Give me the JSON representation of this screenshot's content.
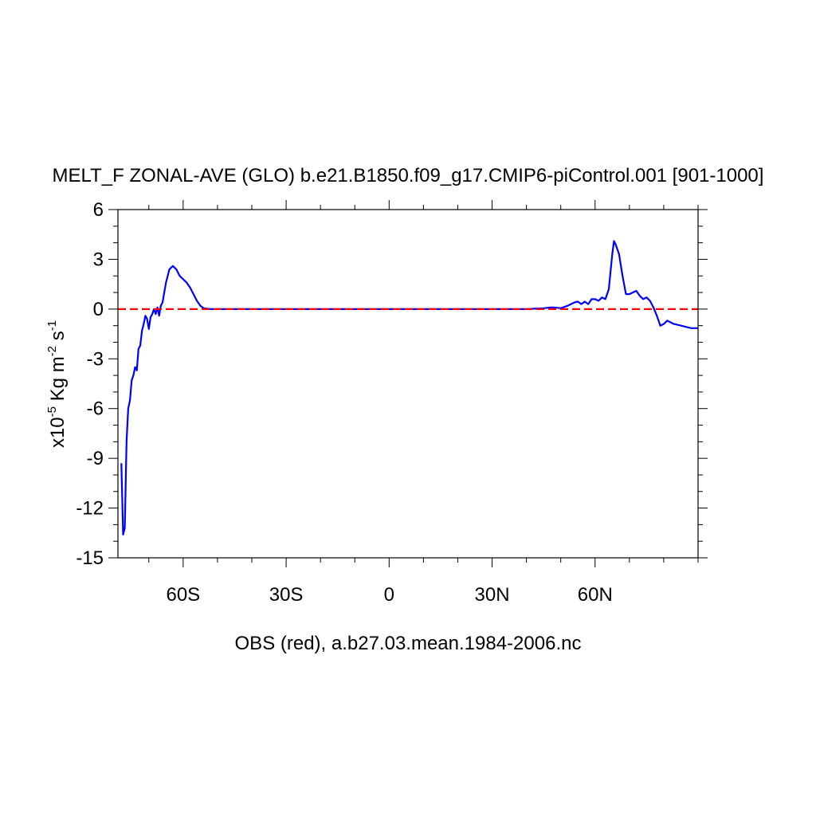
{
  "chart_data": {
    "type": "line",
    "title": "MELT_F ZONAL-AVE (GLO) b.e21.B1850.f09_g17.CMIP6-piControl.001 [901-1000]",
    "xlabel": "OBS (red), a.b27.03.mean.1984-2006.nc",
    "ylabel": {
      "prefix": "x10",
      "exp": "-5",
      "unit1": " Kg m",
      "unit1_exp": "-2",
      "unit2": " s",
      "unit2_exp": "-1"
    },
    "xlim": [
      -79,
      90
    ],
    "ylim": [
      -15,
      6
    ],
    "x_ticks": [
      -60,
      -30,
      0,
      30,
      60
    ],
    "x_tick_labels": [
      "60S",
      "30S",
      "0",
      "30N",
      "60N"
    ],
    "y_ticks": [
      6,
      3,
      0,
      -3,
      -6,
      -9,
      -12,
      -15
    ],
    "y_tick_labels": [
      "6",
      "3",
      "0",
      "-3",
      "-6",
      "-9",
      "-12",
      "-15"
    ],
    "grid": false,
    "colors": {
      "model": "#0000ff",
      "obs": "#ff0000",
      "axis": "#000000"
    },
    "series": [
      {
        "x": [
          -78,
          -77.5,
          -77,
          -76.5,
          -76,
          -75.5,
          -75,
          -74.5,
          -74,
          -73.5,
          -73,
          -72.5,
          -72,
          -71.5,
          -71,
          -70.5,
          -70,
          -69.5,
          -69,
          -68.5,
          -68,
          -67.5,
          -67,
          -66.5,
          -66,
          -65,
          -64,
          -63,
          -62,
          -61,
          -60,
          -59,
          -58,
          -57,
          -56,
          -55,
          -54,
          -52,
          -50,
          -40,
          -30,
          -20,
          -10,
          0,
          10,
          20,
          30,
          40,
          45,
          47,
          48,
          50,
          52,
          54,
          55,
          56,
          57,
          58,
          59,
          60,
          61,
          62,
          63,
          64,
          65,
          65.5,
          66,
          67,
          68,
          69,
          70,
          71,
          72,
          73,
          74,
          75,
          76,
          77,
          78,
          79,
          80,
          81,
          82,
          83,
          84,
          86,
          88,
          90
        ],
        "y": [
          -9.3,
          -13.6,
          -13.2,
          -8,
          -6,
          -5.5,
          -4.3,
          -4,
          -3.5,
          -3.7,
          -2.4,
          -2.2,
          -1.3,
          -0.9,
          -0.4,
          -0.6,
          -1.2,
          -0.5,
          -0.3,
          0.0,
          -0.3,
          0.1,
          -0.4,
          0.2,
          0.4,
          1.6,
          2.4,
          2.6,
          2.4,
          2.0,
          1.8,
          1.6,
          1.3,
          0.9,
          0.5,
          0.2,
          0.05,
          0,
          0,
          0,
          0,
          0,
          0,
          0,
          0,
          0,
          0,
          0,
          0.05,
          0.1,
          0.1,
          0.05,
          0.2,
          0.4,
          0.45,
          0.3,
          0.45,
          0.3,
          0.6,
          0.6,
          0.5,
          0.7,
          0.6,
          1.2,
          3.3,
          4.1,
          3.9,
          3.3,
          2.0,
          0.9,
          0.9,
          1.0,
          1.1,
          0.8,
          0.6,
          0.7,
          0.5,
          0.1,
          -0.4,
          -1.0,
          -0.9,
          -0.7,
          -0.8,
          -0.9,
          -0.95,
          -1.05,
          -1.15,
          -1.15
        ]
      },
      {
        "x": [
          -79,
          90
        ],
        "y": [
          0,
          0
        ]
      }
    ]
  }
}
